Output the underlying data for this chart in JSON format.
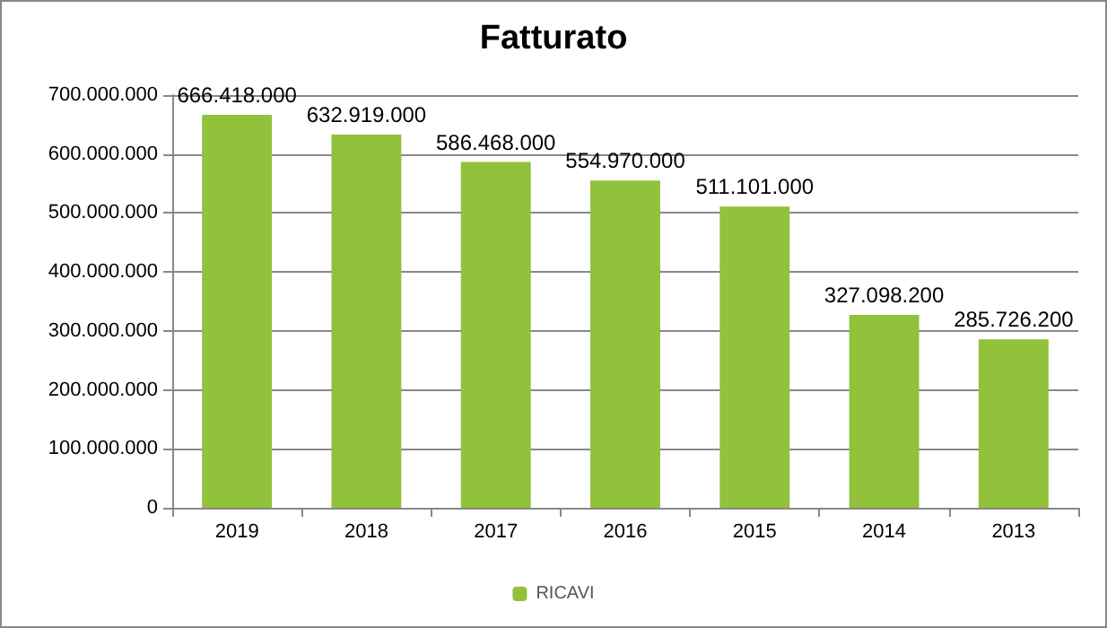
{
  "chart_data": {
    "type": "bar",
    "title": "Fatturato",
    "categories": [
      "2019",
      "2018",
      "2017",
      "2016",
      "2015",
      "2014",
      "2013"
    ],
    "series": [
      {
        "name": "RICAVI",
        "color": "#92c13c",
        "values": [
          666418000,
          632919000,
          586468000,
          554970000,
          511101000,
          327098200,
          285726200
        ],
        "value_labels": [
          "666.418.000",
          "632.919.000",
          "586.468.000",
          "554.970.000",
          "511.101.000",
          "327.098.200",
          "285.726.200"
        ]
      }
    ],
    "ylim": [
      0,
      700000000
    ],
    "yticks": [
      0,
      {
        "value": 100000000,
        "label": "100.000.000"
      },
      {
        "value": 200000000,
        "label": "200.000.000"
      },
      {
        "value": 300000000,
        "label": "300.000.000"
      },
      {
        "value": 400000000,
        "label": "400.000.000"
      },
      {
        "value": 500000000,
        "label": "500.000.000"
      },
      {
        "value": 600000000,
        "label": "600.000.000"
      },
      {
        "value": 700000000,
        "label": "700.000.000"
      }
    ],
    "grid": "y",
    "legend": "bottom"
  }
}
